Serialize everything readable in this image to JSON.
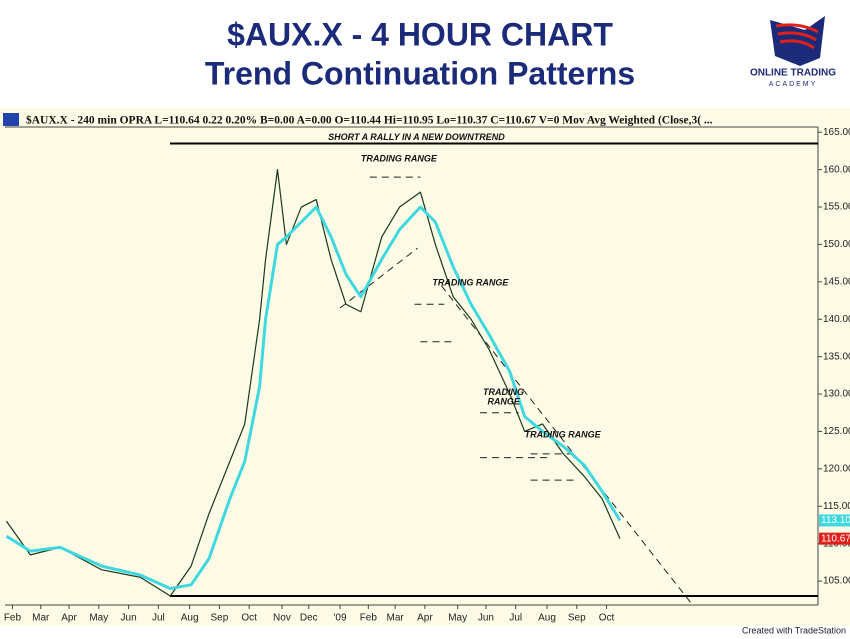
{
  "chart_data": {
    "type": "line",
    "title": "$AUX.X  - 4 HOUR CHART",
    "subtitle": "Trend Continuation Patterns",
    "logo": [
      "ONLINE TRADING",
      "ACADEMY"
    ],
    "header": "$AUX.X - 240 min OPRA  L=110.64  0.22  0.20%  B=0.00  A=0.00  O=110.44  Hi=110.95  Lo=110.37  C=110.67  V=0  Mov Avg Weighted (Close,3( ...",
    "footer": "Created with TradeStation",
    "x": [
      -0.2,
      0.6,
      1.6,
      3,
      4.3,
      5.3,
      6,
      6.6,
      7.3,
      7.8,
      8.3,
      8.5,
      8.9,
      9.2,
      9.7,
      10.2,
      10.7,
      11.2,
      11.7,
      12.4,
      13,
      13.7,
      14.2,
      14.8,
      15.4,
      16,
      16.7,
      17.2,
      17.8,
      18.5,
      19.2,
      19.8,
      20.4
    ],
    "series": [
      {
        "name": "Price",
        "color": "#1a3a1a",
        "width": 1.2,
        "values": [
          113,
          108.5,
          109.5,
          106.5,
          105.5,
          103,
          107,
          114,
          121,
          126,
          140,
          148,
          160,
          150,
          155,
          156,
          148,
          142,
          141,
          151,
          155,
          157,
          150,
          143,
          140,
          136,
          130,
          125,
          126,
          122,
          119,
          116,
          110.67
        ],
        "last_value": {
          "value": 110.67,
          "label": "110.67"
        },
        "box_color": "#e0201a"
      },
      {
        "name": "Mov Avg Weighted",
        "color": "#3fd8e0",
        "width": 3,
        "values": [
          111,
          109,
          109.5,
          107,
          105.8,
          104,
          104.5,
          108,
          116,
          121,
          131,
          140,
          150,
          151,
          153,
          155,
          151,
          146,
          143,
          148,
          152,
          155,
          153,
          147,
          142,
          138,
          133,
          127,
          125,
          123,
          120.5,
          117,
          113.1
        ],
        "last_value": {
          "value": 113.1,
          "label": "113.10"
        },
        "box_color": "#3fd8e0"
      }
    ],
    "xlim": [
      -0.25,
      27.05
    ],
    "xticks": [
      {
        "value": 0,
        "label": "Feb"
      },
      {
        "value": 0.95,
        "label": "Mar"
      },
      {
        "value": 1.9,
        "label": "Apr"
      },
      {
        "value": 2.9,
        "label": "May"
      },
      {
        "value": 3.9,
        "label": "Jun"
      },
      {
        "value": 4.9,
        "label": "Jul"
      },
      {
        "value": 5.95,
        "label": "Aug"
      },
      {
        "value": 6.95,
        "label": "Sep"
      },
      {
        "value": 7.95,
        "label": "Oct"
      },
      {
        "value": 9.05,
        "label": "Nov"
      },
      {
        "value": 9.95,
        "label": "Dec"
      },
      {
        "value": 11,
        "label": "'09"
      },
      {
        "value": 11.95,
        "label": "Feb"
      },
      {
        "value": 12.85,
        "label": "Mar"
      },
      {
        "value": 13.85,
        "label": "Apr"
      },
      {
        "value": 14.95,
        "label": "May"
      },
      {
        "value": 15.9,
        "label": "Jun"
      },
      {
        "value": 16.9,
        "label": "Jul"
      },
      {
        "value": 17.95,
        "label": "Aug"
      },
      {
        "value": 18.95,
        "label": "Sep"
      },
      {
        "value": 19.95,
        "label": "Oct"
      }
    ],
    "ylim": [
      101.8,
      165.7
    ],
    "yticks": [
      {
        "value": 105,
        "label": "105.00"
      },
      {
        "value": 110,
        "label": "110.00"
      },
      {
        "value": 115,
        "label": "115.00"
      },
      {
        "value": 120,
        "label": "120.00"
      },
      {
        "value": 125,
        "label": "125.00"
      },
      {
        "value": 130,
        "label": "130.00"
      },
      {
        "value": 135,
        "label": "135.00"
      },
      {
        "value": 140,
        "label": "140.00"
      },
      {
        "value": 145,
        "label": "145.00"
      },
      {
        "value": 150,
        "label": "150.00"
      },
      {
        "value": 155,
        "label": "155.00"
      },
      {
        "value": 160,
        "label": "160.00"
      },
      {
        "value": 165,
        "label": "165.00"
      }
    ],
    "hlines": [
      163.5,
      103
    ],
    "trendlines": [
      {
        "x": [
          11,
          13.6
        ],
        "y": [
          141.5,
          149.5
        ]
      },
      {
        "x": [
          14.4,
          22.8
        ],
        "y": [
          144.5,
          102
        ]
      }
    ],
    "ranges": [
      {
        "x": [
          12,
          13.7
        ],
        "y": 159
      },
      {
        "x": [
          13.5,
          14.5
        ],
        "y": 142
      },
      {
        "x": [
          13.7,
          14.8
        ],
        "y": 137
      },
      {
        "x": [
          15.7,
          17
        ],
        "y": 127.5
      },
      {
        "x": [
          15.7,
          18
        ],
        "y": 121.5
      },
      {
        "x": [
          17.4,
          18.9
        ],
        "y": 122
      },
      {
        "x": [
          17.4,
          18.9
        ],
        "y": 118.5
      }
    ],
    "annotations": [
      {
        "text": "SHORT A RALLY IN A NEW DOWNTREND",
        "x": 10.6,
        "y": 164.3
      },
      {
        "text": "TRADING RANGE",
        "x": 11.7,
        "y": 161.4
      },
      {
        "text": "TRADING RANGE",
        "x": 14.1,
        "y": 144.8
      },
      {
        "text": "TRADING",
        "x": 15.8,
        "y": 130.2
      },
      {
        "text": "RANGE",
        "x": 15.95,
        "y": 128.9
      },
      {
        "text": "TRADING RANGE",
        "x": 17.2,
        "y": 124.5
      }
    ]
  }
}
